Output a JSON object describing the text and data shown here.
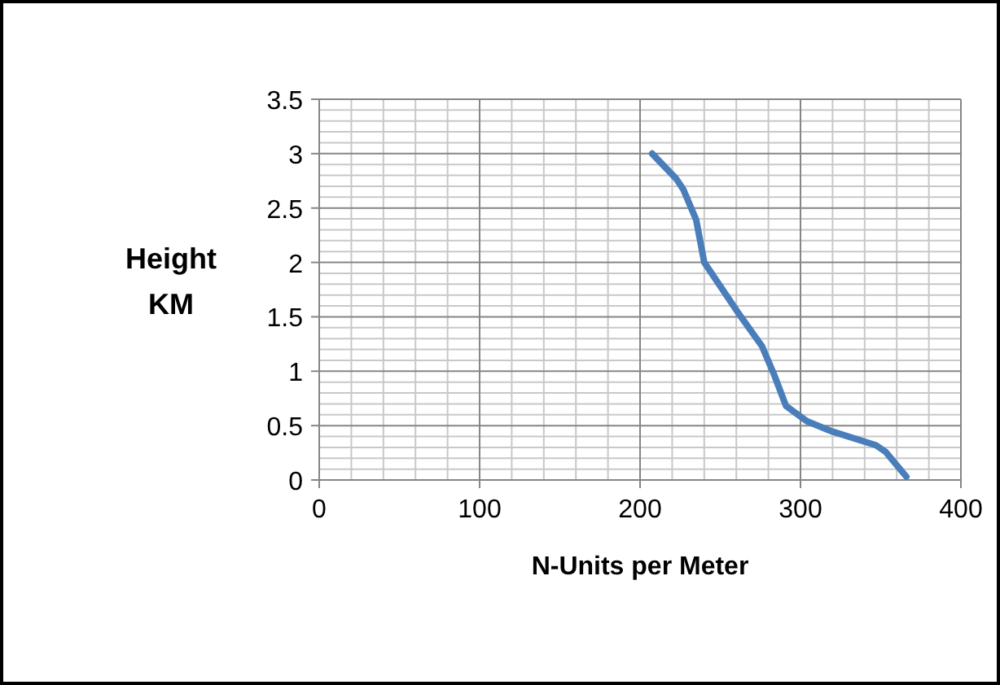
{
  "chart_data": {
    "type": "line",
    "xlabel": "N-Units per Meter",
    "ylabel": "Height KM",
    "series": [
      {
        "color": "#4a7ebb",
        "x": [
          207.5,
          222.5,
          227,
          235,
          240,
          261,
          276,
          283.5,
          291,
          304,
          319,
          347,
          353,
          366
        ],
        "values": [
          3,
          2.77,
          2.67,
          2.39,
          2,
          1.54,
          1.23,
          0.97,
          0.68,
          0.54,
          0.45,
          0.32,
          0.26,
          0.03
        ]
      }
    ],
    "xlim": [
      0,
      400
    ],
    "xticks": [
      0,
      100,
      200,
      300,
      400
    ],
    "ylim": [
      0,
      3.5
    ],
    "yticks": [
      0,
      0.5,
      1,
      1.5,
      2,
      2.5,
      3,
      3.5
    ],
    "grid": true,
    "marker": "none",
    "line_style": "solid"
  }
}
